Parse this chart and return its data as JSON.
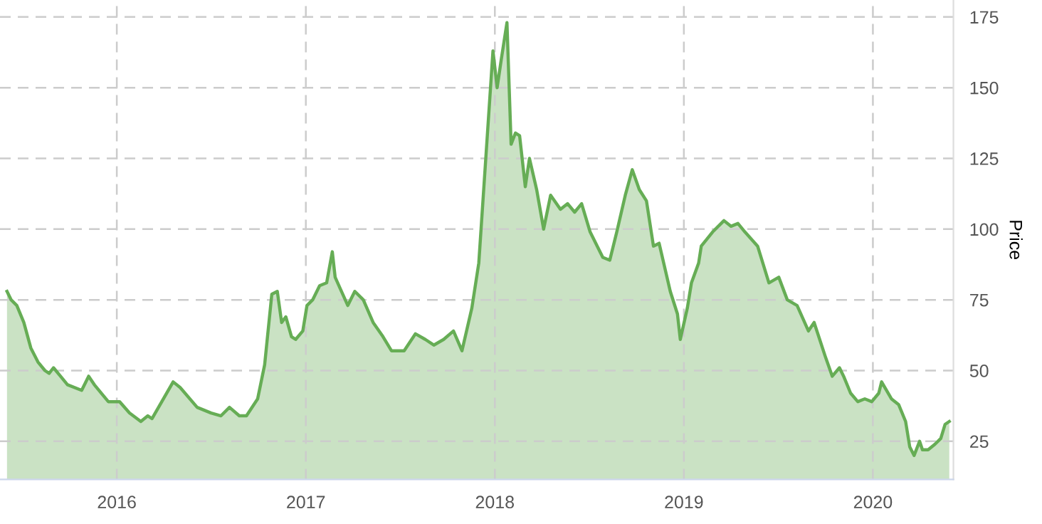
{
  "chart_data": {
    "type": "area",
    "ylabel": "Price",
    "grid": true,
    "line_style": "solid",
    "xlim": [
      2015.382,
      2020.426
    ],
    "ylim": [
      11.5,
      181
    ],
    "xticks": [
      2016,
      2017,
      2018,
      2019,
      2020
    ],
    "yticks": [
      25,
      50,
      75,
      100,
      125,
      150,
      175
    ],
    "series": [
      {
        "color": "#66ad55",
        "x": [
          2015.419,
          2015.441,
          2015.471,
          2015.508,
          2015.545,
          2015.583,
          2015.62,
          2015.642,
          2015.665,
          2015.702,
          2015.739,
          2015.814,
          2015.851,
          2015.881,
          2015.955,
          2016.015,
          2016.067,
          2016.127,
          2016.164,
          2016.186,
          2016.238,
          2016.298,
          2016.335,
          2016.425,
          2016.499,
          2016.551,
          2016.596,
          2016.648,
          2016.686,
          2016.745,
          2016.782,
          2016.82,
          2016.849,
          2016.872,
          2016.894,
          2016.924,
          2016.946,
          2016.984,
          2017.006,
          2017.036,
          2017.073,
          2017.11,
          2017.14,
          2017.155,
          2017.222,
          2017.259,
          2017.304,
          2017.356,
          2017.408,
          2017.453,
          2017.52,
          2017.58,
          2017.632,
          2017.677,
          2017.729,
          2017.781,
          2017.826,
          2017.878,
          2017.915,
          2017.99,
          2018.012,
          2018.034,
          2018.064,
          2018.086,
          2018.109,
          2018.131,
          2018.161,
          2018.183,
          2018.221,
          2018.258,
          2018.295,
          2018.347,
          2018.385,
          2018.422,
          2018.459,
          2018.504,
          2018.571,
          2018.608,
          2018.645,
          2018.69,
          2018.727,
          2018.764,
          2018.802,
          2018.839,
          2018.869,
          2018.928,
          2018.966,
          2018.981,
          2019.018,
          2019.04,
          2019.078,
          2019.092,
          2019.152,
          2019.212,
          2019.249,
          2019.286,
          2019.323,
          2019.39,
          2019.45,
          2019.502,
          2019.547,
          2019.599,
          2019.659,
          2019.689,
          2019.748,
          2019.785,
          2019.823,
          2019.845,
          2019.882,
          2019.92,
          2019.957,
          2019.994,
          2020.031,
          2020.046,
          2020.098,
          2020.136,
          2020.173,
          2020.195,
          2020.218,
          2020.247,
          2020.262,
          2020.292,
          2020.329,
          2020.359,
          2020.382,
          2020.404
        ],
        "values": [
          78,
          75,
          73,
          67,
          58,
          53,
          50,
          49,
          51,
          48,
          45,
          43,
          48,
          45,
          39,
          39,
          35,
          32,
          34,
          33,
          39,
          46,
          44,
          37,
          35,
          34,
          37,
          34,
          34,
          40,
          52,
          77,
          78,
          67,
          69,
          62,
          61,
          64,
          73,
          75,
          80,
          81,
          92,
          83,
          73,
          78,
          75,
          67,
          62,
          57,
          57,
          63,
          61,
          59,
          61,
          64,
          57,
          72,
          88,
          163,
          150,
          160,
          173,
          130,
          134,
          133,
          115,
          125,
          114,
          100,
          112,
          107,
          109,
          106,
          109,
          99,
          90,
          89,
          99,
          112,
          121,
          114,
          110,
          94,
          95,
          78,
          70,
          61,
          72,
          81,
          88,
          94,
          99,
          103,
          101,
          102,
          99,
          94,
          81,
          83,
          75,
          73,
          64,
          67,
          55,
          48,
          51,
          48,
          42,
          39,
          40,
          39,
          42,
          46,
          40,
          38,
          32,
          23,
          20,
          25,
          22,
          22,
          24,
          26,
          31,
          32
        ]
      }
    ]
  }
}
